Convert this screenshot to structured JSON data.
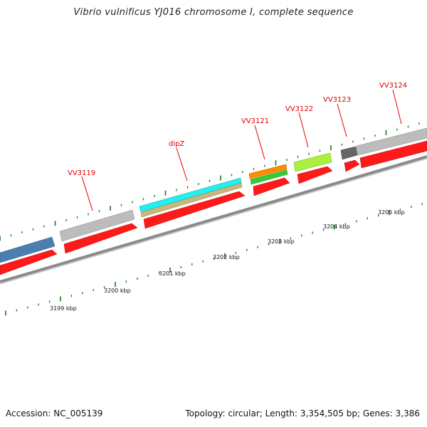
{
  "title": "Vibrio vulnificus YJ016 chromosome I, complete sequence",
  "footer": {
    "accession": "Accession: NC_005139",
    "summary": "Topology: circular; Length: 3,354,505 bp; Genes: 3,386"
  },
  "gene_labels": [
    "VV3119",
    "dipZ",
    "VV3121",
    "VV3122",
    "VV3123",
    "VV3124"
  ],
  "scale_labels": [
    "3199 kbp",
    "3200 kbp",
    "3201 kbp",
    "3202 kbp",
    "3203 kbp",
    "3204 kbp",
    "3205 kbp"
  ],
  "colors": {
    "cds": "#ff1a1a",
    "backbone": "#8a8a8a",
    "tick": "#1a7a1a",
    "label": "#e00000",
    "feature_blue": "#4a7fb0",
    "feature_gray": "#bcbcbc",
    "feature_cyan": "#22f0f0",
    "feature_tan": "#c8b87a",
    "feature_orange": "#ff8c00",
    "feature_green": "#33cc33",
    "feature_lime": "#aaf03c",
    "feature_dark": "#666666"
  }
}
